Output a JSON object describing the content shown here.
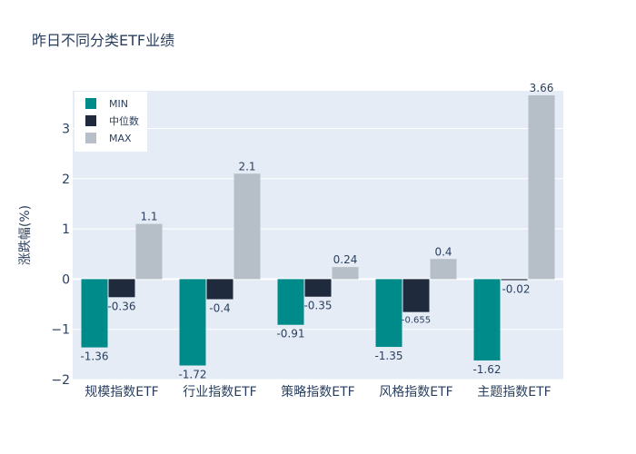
{
  "chart_data": {
    "type": "bar",
    "title": "昨日不同分类ETF业绩",
    "xlabel": "",
    "ylabel": "涨跌幅(%)",
    "categories": [
      "规模指数ETF",
      "行业指数ETF",
      "策略指数ETF",
      "风格指数ETF",
      "主题指数ETF"
    ],
    "series": [
      {
        "name": "MIN",
        "color": "#008b8b",
        "values": [
          -1.36,
          -1.72,
          -0.91,
          -1.35,
          -1.62
        ],
        "labels": [
          "-1.36",
          "-1.72",
          "-0.91",
          "-1.35",
          "-1.62"
        ]
      },
      {
        "name": "中位数",
        "color": "#1f2a3c",
        "values": [
          -0.36,
          -0.4,
          -0.35,
          -0.655,
          -0.02
        ],
        "labels": [
          "-0.36",
          "-0.4",
          "-0.35",
          "-0.655",
          "-0.02"
        ]
      },
      {
        "name": "MAX",
        "color": "#b6bec7",
        "values": [
          1.1,
          2.1,
          0.24,
          0.4,
          3.66
        ],
        "labels": [
          "1.1",
          "2.1",
          "0.24",
          "0.4",
          "3.66"
        ]
      }
    ],
    "ylim": [
      -2,
      3.75
    ],
    "yticks": [
      -2,
      -1,
      0,
      1,
      2,
      3
    ],
    "ytick_labels": [
      "−2",
      "−1",
      "0",
      "1",
      "2",
      "3"
    ],
    "grid": true,
    "legend_position": "top-left",
    "plot_background": "#e5ecf6"
  }
}
